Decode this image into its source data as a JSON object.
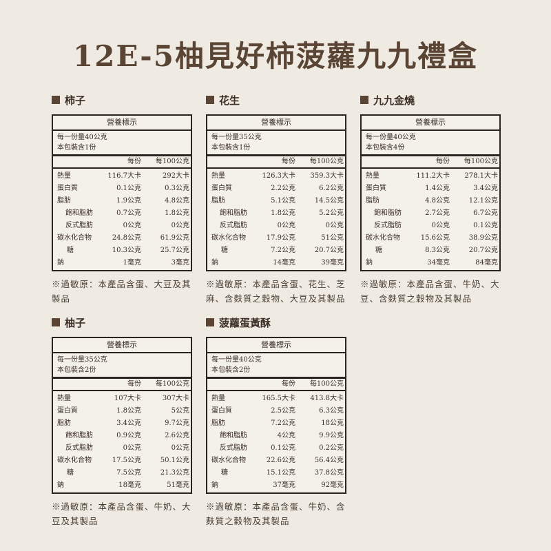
{
  "title": "12E-5柚見好柿菠蘿九九禮盒",
  "label_title": "營養標示",
  "col_per_serving": "每份",
  "col_per_100g": "每100公克",
  "nutrients": [
    "熱量",
    "蛋白質",
    "脂肪",
    "飽和脂肪",
    "反式脂肪",
    "碳水化合物",
    "糖",
    "鈉"
  ],
  "products": [
    {
      "name": "柿子",
      "serving": "每一份量40公克",
      "count": "本包裝含1份",
      "per_serving": [
        "116.7大卡",
        "0.1公克",
        "1.9公克",
        "0.7公克",
        "0公克",
        "24.8公克",
        "10.3公克",
        "1毫克"
      ],
      "per_100g": [
        "292大卡",
        "0.3公克",
        "4.8公克",
        "1.8公克",
        "0公克",
        "61.9公克",
        "25.7公克",
        "3毫克"
      ],
      "allergen": "※過敏原：本產品含蛋、大豆及其製品"
    },
    {
      "name": "花生",
      "serving": "每一份量35公克",
      "count": "本包裝含1份",
      "per_serving": [
        "126.3大卡",
        "2.2公克",
        "5.1公克",
        "1.8公克",
        "0公克",
        "17.9公克",
        "7.2公克",
        "14毫克"
      ],
      "per_100g": [
        "359.3大卡",
        "6.2公克",
        "14.5公克",
        "5.2公克",
        "0公克",
        "51公克",
        "20.7公克",
        "39毫克"
      ],
      "allergen": "※過敏原：本產品含蛋、花生、芝麻、含麩質之穀物、大豆及其製品"
    },
    {
      "name": "九九金燒",
      "serving": "每一份量40公克",
      "count": "本包裝含4份",
      "per_serving": [
        "111.2大卡",
        "1.4公克",
        "4.8公克",
        "2.7公克",
        "0公克",
        "15.6公克",
        "8.3公克",
        "34毫克"
      ],
      "per_100g": [
        "278.1大卡",
        "3.4公克",
        "12.1公克",
        "6.7公克",
        "0.1公克",
        "38.9公克",
        "20.7公克",
        "84毫克"
      ],
      "allergen": "※過敏原：本產品含蛋、牛奶、大豆、含麩質之穀物及其製品"
    },
    {
      "name": "柚子",
      "serving": "每一份量35公克",
      "count": "本包裝含2份",
      "per_serving": [
        "107大卡",
        "1.8公克",
        "3.4公克",
        "0.9公克",
        "0公克",
        "17.5公克",
        "7.5公克",
        "18毫克"
      ],
      "per_100g": [
        "307大卡",
        "5公克",
        "9.7公克",
        "2.6公克",
        "0公克",
        "50.1公克",
        "21.3公克",
        "51毫克"
      ],
      "allergen": "※過敏原：本產品含蛋、牛奶、大豆及其製品"
    },
    {
      "name": "菠蘿蛋黃酥",
      "serving": "每一份量40公克",
      "count": "本包裝含2份",
      "per_serving": [
        "165.5大卡",
        "2.5公克",
        "7.2公克",
        "4公克",
        "0.1公克",
        "22.6公克",
        "15.1公克",
        "37毫克"
      ],
      "per_100g": [
        "413.8大卡",
        "6.3公克",
        "18公克",
        "9.9公克",
        "0.2公克",
        "56.4公克",
        "37.8公克",
        "92毫克"
      ],
      "allergen": "※過敏原：本產品含蛋、牛奶、含麩質之穀物及其製品"
    }
  ]
}
